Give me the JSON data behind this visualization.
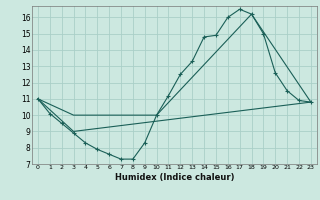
{
  "xlabel": "Humidex (Indice chaleur)",
  "bg_color": "#cce8e0",
  "grid_color": "#aacfc8",
  "line_color": "#1a5f57",
  "xlim": [
    -0.5,
    23.5
  ],
  "ylim": [
    7,
    16.7
  ],
  "xticks": [
    0,
    1,
    2,
    3,
    4,
    5,
    6,
    7,
    8,
    9,
    10,
    11,
    12,
    13,
    14,
    15,
    16,
    17,
    18,
    19,
    20,
    21,
    22,
    23
  ],
  "yticks": [
    7,
    8,
    9,
    10,
    11,
    12,
    13,
    14,
    15,
    16
  ],
  "line1_x": [
    0,
    1,
    2,
    3,
    4,
    5,
    6,
    7,
    8,
    9,
    10,
    11,
    12,
    13,
    14,
    15,
    16,
    17,
    18,
    19,
    20,
    21,
    22,
    23
  ],
  "line1_y": [
    11,
    10.1,
    9.5,
    8.9,
    8.3,
    7.9,
    7.6,
    7.3,
    7.3,
    8.3,
    10.0,
    11.2,
    12.5,
    13.3,
    14.8,
    14.9,
    16.0,
    16.5,
    16.2,
    15.0,
    12.6,
    11.5,
    10.9,
    10.8
  ],
  "line2_x": [
    0,
    3,
    10,
    18,
    23
  ],
  "line2_y": [
    11,
    10.0,
    10.0,
    16.2,
    10.8
  ],
  "line3_x": [
    0,
    3,
    23
  ],
  "line3_y": [
    11,
    9.0,
    10.8
  ]
}
